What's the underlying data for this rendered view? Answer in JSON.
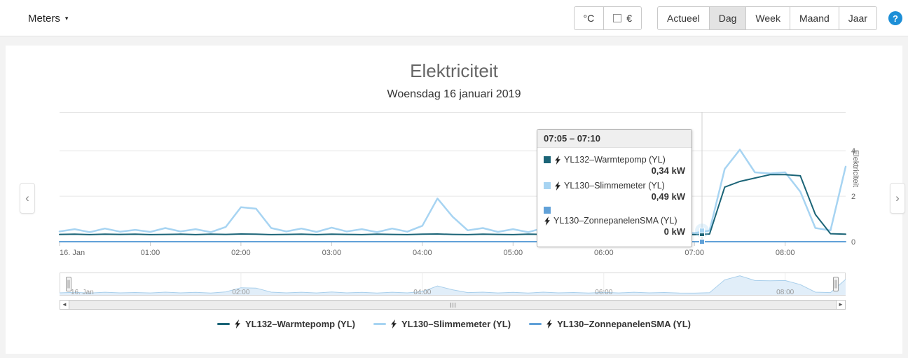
{
  "icons": {
    "caret_down": "▾",
    "chevron_left": "‹",
    "chevron_right": "›",
    "scroll_left_arrow": "◄",
    "scroll_right_arrow": "►"
  },
  "toolbar": {
    "meters_label": "Meters",
    "celsius_label": "°C",
    "euro_label": "€",
    "tabs": [
      {
        "label": "Actueel",
        "active": false
      },
      {
        "label": "Dag",
        "active": true
      },
      {
        "label": "Week",
        "active": false
      },
      {
        "label": "Maand",
        "active": false
      },
      {
        "label": "Jaar",
        "active": false
      }
    ],
    "help_label": "?"
  },
  "tooltip": {
    "title": "07:05 – 07:10",
    "entries": [
      {
        "name": "YL132–Warmtepomp (YL)",
        "value": "0,34 kW"
      },
      {
        "name": "YL130–Slimmemeter (YL)",
        "value": "0,49 kW"
      },
      {
        "name": "YL130–ZonnepanelenSMA (YL)",
        "value": "0 kW"
      }
    ]
  },
  "chart_data": {
    "type": "line",
    "title": "Elektriciteit",
    "subtitle": "Woensdag 16 januari 2019",
    "ylabel": "Elektriciteit",
    "unit": "kW",
    "ylim": [
      0,
      5.7
    ],
    "y_ticks": [
      0,
      2,
      4
    ],
    "x_start": "00:00",
    "x_step_minutes": 10,
    "x_tick_labels": [
      "16. Jan",
      "01:00",
      "02:00",
      "03:00",
      "04:00",
      "05:00",
      "06:00",
      "07:00",
      "08:00"
    ],
    "navigator_tick_labels": [
      "16. Jan",
      "02:00",
      "04:00",
      "06:00",
      "08:00"
    ],
    "crosshair_minute": 425,
    "selected_point": {
      "time_range": "07:05 – 07:10",
      "values_kw": [
        0.34,
        0.49,
        0
      ]
    },
    "legend_position": "bottom",
    "series": [
      {
        "name": "YL132–Warmtepomp (YL)",
        "color": "#1b6477",
        "values": [
          0.32,
          0.33,
          0.31,
          0.33,
          0.32,
          0.33,
          0.31,
          0.32,
          0.33,
          0.31,
          0.33,
          0.32,
          0.34,
          0.33,
          0.31,
          0.32,
          0.33,
          0.31,
          0.33,
          0.32,
          0.31,
          0.33,
          0.32,
          0.31,
          0.33,
          0.34,
          0.32,
          0.31,
          0.33,
          0.32,
          0.31,
          0.33,
          0.32,
          0.31,
          0.33,
          0.32,
          0.31,
          0.33,
          0.32,
          0.31,
          0.33,
          0.32,
          0.31,
          0.34,
          2.4,
          2.65,
          2.8,
          2.95,
          2.95,
          2.9,
          1.2,
          0.35,
          0.33
        ]
      },
      {
        "name": "YL130–Slimmemeter (YL)",
        "color": "#a7d4f2",
        "values": [
          0.45,
          0.55,
          0.42,
          0.58,
          0.44,
          0.52,
          0.43,
          0.6,
          0.45,
          0.55,
          0.42,
          0.65,
          1.52,
          1.45,
          0.6,
          0.45,
          0.58,
          0.43,
          0.62,
          0.45,
          0.55,
          0.42,
          0.58,
          0.44,
          0.7,
          1.9,
          1.1,
          0.5,
          0.6,
          0.43,
          0.55,
          0.42,
          0.6,
          0.44,
          0.52,
          0.42,
          0.55,
          0.43,
          0.58,
          0.44,
          0.52,
          0.4,
          0.38,
          0.49,
          3.2,
          4.05,
          3.05,
          3.0,
          3.05,
          2.2,
          0.6,
          0.5,
          3.3
        ]
      },
      {
        "name": "YL130–ZonnepanelenSMA (YL)",
        "color": "#61a1d8",
        "values": [
          0,
          0,
          0,
          0,
          0,
          0,
          0,
          0,
          0,
          0,
          0,
          0,
          0,
          0,
          0,
          0,
          0,
          0,
          0,
          0,
          0,
          0,
          0,
          0,
          0,
          0,
          0,
          0,
          0,
          0,
          0,
          0,
          0,
          0,
          0,
          0,
          0,
          0,
          0,
          0,
          0,
          0,
          0,
          0,
          0,
          0,
          0,
          0,
          0,
          0,
          0,
          0,
          0
        ]
      }
    ]
  }
}
